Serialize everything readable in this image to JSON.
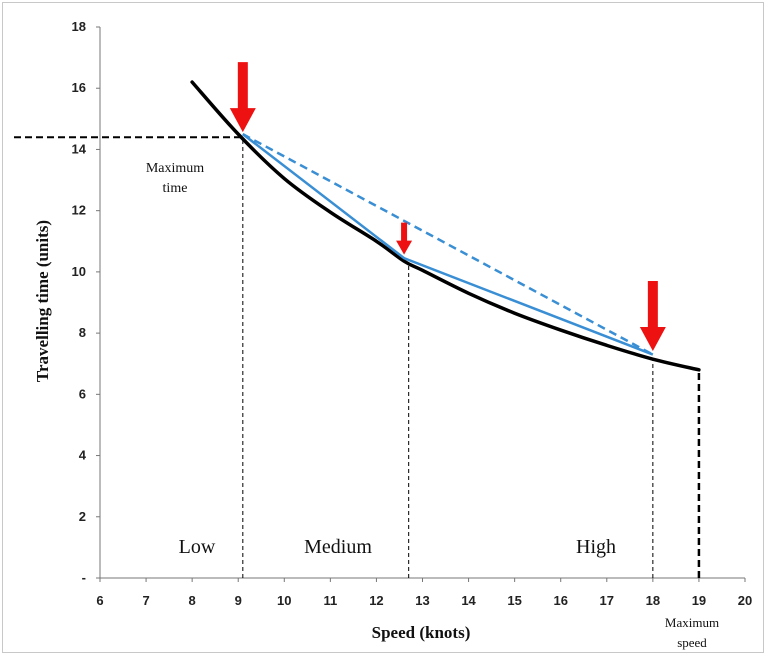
{
  "chart_data": {
    "type": "line",
    "xlabel": "Speed (knots)",
    "ylabel": "Travelling time (units)",
    "xlim": [
      6,
      20
    ],
    "ylim": [
      0,
      18
    ],
    "x_ticks": [
      "6",
      "7",
      "8",
      "9",
      "10",
      "11",
      "12",
      "13",
      "14",
      "15",
      "16",
      "17",
      "18",
      "19",
      "20"
    ],
    "y_ticks": [
      "-",
      "2",
      "4",
      "6",
      "8",
      "10",
      "12",
      "14",
      "16",
      "18"
    ],
    "grid": false,
    "series": [
      {
        "style": "solid-black-curve",
        "color": "#000000",
        "x": [
          8.0,
          9.0,
          10.0,
          11.0,
          12.0,
          12.6,
          13.0,
          14.0,
          15.0,
          16.0,
          17.0,
          18.0,
          19.0
        ],
        "y": [
          16.2,
          14.5,
          13.05,
          11.95,
          11.0,
          10.35,
          10.05,
          9.3,
          8.65,
          8.1,
          7.6,
          7.15,
          6.8
        ]
      },
      {
        "style": "solid-blue",
        "color": "#3a8fd4",
        "x": [
          9.1,
          12.6,
          18.0
        ],
        "y": [
          14.5,
          10.45,
          7.3
        ]
      },
      {
        "style": "dashed-blue",
        "color": "#3a8fd4",
        "x": [
          9.1,
          18.0
        ],
        "y": [
          14.5,
          7.3
        ]
      }
    ],
    "reference_lines": {
      "max_time_y": 14.4,
      "max_time_x_range": [
        6,
        9.1
      ],
      "dividers_x": [
        9.1,
        12.7,
        18.0
      ],
      "max_speed_x": 19.0,
      "max_speed_top_y": 6.8
    },
    "arrows": [
      {
        "x": 9.1,
        "y": 14.5,
        "size": "large",
        "color": "#ee1111"
      },
      {
        "x": 12.6,
        "y": 10.5,
        "size": "small",
        "color": "#ee1111"
      },
      {
        "x": 18.0,
        "y": 7.35,
        "size": "large",
        "color": "#ee1111"
      }
    ],
    "annotations": {
      "max_time_label": [
        "Maximum",
        "time"
      ],
      "max_speed_label": [
        "Maximum",
        "speed"
      ],
      "regions": [
        "Low",
        "Medium",
        "High"
      ]
    }
  }
}
